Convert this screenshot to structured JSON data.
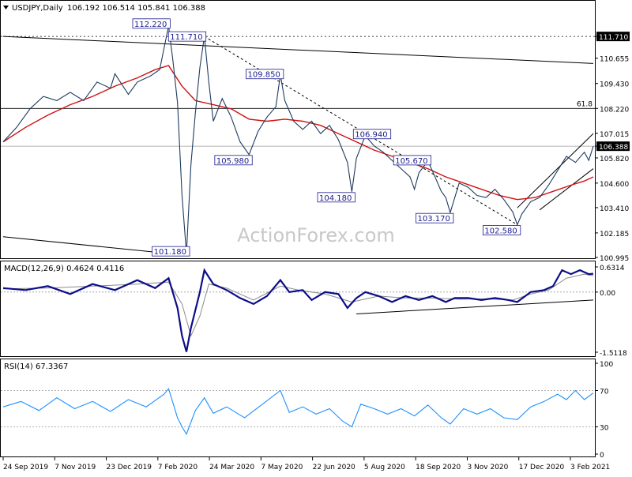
{
  "chart_data": [
    {
      "type": "line",
      "panel": "price",
      "title": "USDJPY,Daily",
      "ohlc_readout": "106.192 106.514 105.841 106.388",
      "watermark": "ActionForex.com",
      "current_price": 106.388,
      "ylim": [
        100.995,
        113.4
      ],
      "y_ticks": [
        {
          "value": 111.71,
          "label": "111.710"
        },
        {
          "value": 110.655,
          "label": "110.655"
        },
        {
          "value": 109.43,
          "label": "109.430"
        },
        {
          "value": 108.22,
          "label": "108.220"
        },
        {
          "value": 107.015,
          "label": "107.015"
        },
        {
          "value": 106.388,
          "label": "106.388"
        },
        {
          "value": 105.82,
          "label": "105.820"
        },
        {
          "value": 104.6,
          "label": "104.600"
        },
        {
          "value": 103.41,
          "label": "103.410"
        },
        {
          "value": 102.185,
          "label": "102.185"
        },
        {
          "value": 100.995,
          "label": "100.995"
        }
      ],
      "x_ticks": [
        "24 Sep 2019",
        "7 Nov 2019",
        "23 Dec 2019",
        "7 Feb 2020",
        "24 Mar 2020",
        "7 May 2020",
        "22 Jun 2020",
        "5 Aug 2020",
        "18 Sep 2020",
        "3 Nov 2020",
        "17 Dec 2020",
        "3 Feb 2021"
      ],
      "price_path": [
        [
          0,
          106.6
        ],
        [
          3,
          107.3
        ],
        [
          6,
          108.2
        ],
        [
          9,
          108.8
        ],
        [
          12,
          108.6
        ],
        [
          15,
          109.0
        ],
        [
          18,
          108.6
        ],
        [
          21,
          109.5
        ],
        [
          24,
          109.2
        ],
        [
          25,
          109.9
        ],
        [
          28,
          108.9
        ],
        [
          30,
          109.5
        ],
        [
          33,
          109.8
        ],
        [
          35,
          110.1
        ],
        [
          37,
          112.22
        ],
        [
          38,
          110.5
        ],
        [
          39,
          108.5
        ],
        [
          40,
          104.0
        ],
        [
          41,
          101.18
        ],
        [
          42,
          105.5
        ],
        [
          43,
          108.0
        ],
        [
          44,
          110.2
        ],
        [
          45,
          111.71
        ],
        [
          46,
          109.5
        ],
        [
          47,
          107.6
        ],
        [
          49,
          108.7
        ],
        [
          51,
          107.8
        ],
        [
          53,
          106.6
        ],
        [
          55,
          105.98
        ],
        [
          57,
          107.1
        ],
        [
          59,
          107.8
        ],
        [
          61,
          108.3
        ],
        [
          62,
          109.85
        ],
        [
          63,
          108.6
        ],
        [
          65,
          107.6
        ],
        [
          67,
          107.2
        ],
        [
          69,
          107.6
        ],
        [
          71,
          107.0
        ],
        [
          73,
          107.4
        ],
        [
          75,
          106.7
        ],
        [
          77,
          105.6
        ],
        [
          78,
          104.18
        ],
        [
          79,
          105.8
        ],
        [
          81,
          106.9
        ],
        [
          83,
          106.4
        ],
        [
          85,
          106.1
        ],
        [
          87,
          105.7
        ],
        [
          89,
          105.3
        ],
        [
          91,
          104.9
        ],
        [
          92,
          104.3
        ],
        [
          93,
          105.1
        ],
        [
          95,
          105.67
        ],
        [
          96,
          105.2
        ],
        [
          97,
          104.7
        ],
        [
          98,
          104.2
        ],
        [
          99,
          103.9
        ],
        [
          100,
          103.17
        ],
        [
          102,
          104.6
        ],
        [
          104,
          104.4
        ],
        [
          106,
          104.0
        ],
        [
          108,
          103.9
        ],
        [
          110,
          104.3
        ],
        [
          112,
          103.8
        ],
        [
          114,
          103.2
        ],
        [
          115,
          102.58
        ],
        [
          116,
          103.1
        ],
        [
          118,
          103.7
        ],
        [
          120,
          103.9
        ],
        [
          122,
          104.5
        ],
        [
          124,
          105.2
        ],
        [
          126,
          105.9
        ],
        [
          128,
          105.6
        ],
        [
          130,
          106.1
        ],
        [
          131,
          105.7
        ],
        [
          132,
          106.388
        ]
      ],
      "sma_path": [
        [
          0,
          106.6
        ],
        [
          5,
          107.3
        ],
        [
          10,
          107.9
        ],
        [
          15,
          108.4
        ],
        [
          20,
          108.8
        ],
        [
          25,
          109.3
        ],
        [
          30,
          109.7
        ],
        [
          34,
          110.1
        ],
        [
          37,
          110.3
        ],
        [
          40,
          109.3
        ],
        [
          43,
          108.6
        ],
        [
          47,
          108.4
        ],
        [
          51,
          108.2
        ],
        [
          55,
          107.7
        ],
        [
          59,
          107.6
        ],
        [
          63,
          107.7
        ],
        [
          67,
          107.6
        ],
        [
          71,
          107.4
        ],
        [
          75,
          107.0
        ],
        [
          79,
          106.6
        ],
        [
          83,
          106.2
        ],
        [
          87,
          105.9
        ],
        [
          91,
          105.6
        ],
        [
          95,
          105.3
        ],
        [
          99,
          104.9
        ],
        [
          103,
          104.6
        ],
        [
          107,
          104.3
        ],
        [
          111,
          104.0
        ],
        [
          115,
          103.8
        ],
        [
          119,
          103.9
        ],
        [
          123,
          104.2
        ],
        [
          127,
          104.5
        ],
        [
          130,
          104.7
        ],
        [
          132,
          104.9
        ]
      ],
      "trendlines": [
        {
          "name": "upper-channel",
          "from": [
            0,
            111.71
          ],
          "to": [
            132,
            110.4
          ]
        },
        {
          "name": "lower-channel",
          "from": [
            0,
            102.0
          ],
          "to": [
            41,
            101.1
          ]
        },
        {
          "name": "dashed-downtrend",
          "from": [
            45,
            111.71
          ],
          "to": [
            115,
            102.58
          ]
        },
        {
          "name": "rising-channel-upper",
          "from": [
            115,
            103.4
          ],
          "to": [
            132,
            107.0
          ]
        },
        {
          "name": "rising-channel-lower",
          "from": [
            120,
            103.3
          ],
          "to": [
            132,
            105.3
          ]
        }
      ],
      "hlines": [
        {
          "value": 111.71,
          "style": "dotted"
        },
        {
          "value": 108.22,
          "label": "61.8"
        },
        {
          "value": 106.388,
          "style": "current"
        }
      ],
      "annotations": [
        {
          "text": "112.220",
          "at": [
            37,
            112.22
          ]
        },
        {
          "text": "111.710",
          "at": [
            45,
            111.71
          ]
        },
        {
          "text": "109.850",
          "at": [
            62,
            109.85
          ]
        },
        {
          "text": "105.980",
          "at": [
            55,
            105.98
          ]
        },
        {
          "text": "104.180",
          "at": [
            78,
            104.18
          ]
        },
        {
          "text": "106.940",
          "at": [
            86,
            106.94
          ]
        },
        {
          "text": "105.670",
          "at": [
            95,
            105.67
          ]
        },
        {
          "text": "103.170",
          "at": [
            100,
            103.17
          ]
        },
        {
          "text": "102.580",
          "at": [
            115,
            102.58
          ]
        },
        {
          "text": "101.180",
          "at": [
            41,
            101.18
          ]
        }
      ]
    },
    {
      "type": "line",
      "panel": "macd",
      "title": "MACD(12,26,9) 0.4624 0.4116",
      "ylim": [
        -1.5118,
        0.6314
      ],
      "y_ticks": [
        {
          "value": 0.6314,
          "label": "0.6314"
        },
        {
          "value": 0.0,
          "label": "0.00"
        },
        {
          "value": -1.5118,
          "label": "-1.5118"
        }
      ],
      "macd_path": [
        [
          0,
          0.1
        ],
        [
          5,
          0.05
        ],
        [
          10,
          0.15
        ],
        [
          15,
          -0.05
        ],
        [
          20,
          0.2
        ],
        [
          25,
          0.05
        ],
        [
          30,
          0.3
        ],
        [
          34,
          0.1
        ],
        [
          37,
          0.35
        ],
        [
          39,
          -0.4
        ],
        [
          40,
          -1.1
        ],
        [
          41,
          -1.5
        ],
        [
          42,
          -0.9
        ],
        [
          44,
          0.0
        ],
        [
          45,
          0.55
        ],
        [
          47,
          0.2
        ],
        [
          50,
          0.05
        ],
        [
          53,
          -0.15
        ],
        [
          56,
          -0.3
        ],
        [
          59,
          -0.1
        ],
        [
          62,
          0.3
        ],
        [
          64,
          0.0
        ],
        [
          67,
          0.05
        ],
        [
          69,
          -0.2
        ],
        [
          72,
          0.0
        ],
        [
          75,
          -0.05
        ],
        [
          77,
          -0.4
        ],
        [
          79,
          -0.15
        ],
        [
          81,
          0.0
        ],
        [
          84,
          -0.1
        ],
        [
          87,
          -0.25
        ],
        [
          90,
          -0.1
        ],
        [
          93,
          -0.2
        ],
        [
          96,
          -0.1
        ],
        [
          99,
          -0.25
        ],
        [
          101,
          -0.15
        ],
        [
          104,
          -0.15
        ],
        [
          107,
          -0.2
        ],
        [
          110,
          -0.15
        ],
        [
          113,
          -0.2
        ],
        [
          115,
          -0.25
        ],
        [
          118,
          0.0
        ],
        [
          121,
          0.05
        ],
        [
          123,
          0.15
        ],
        [
          125,
          0.55
        ],
        [
          127,
          0.45
        ],
        [
          129,
          0.55
        ],
        [
          131,
          0.45
        ],
        [
          132,
          0.46
        ]
      ],
      "signal_path": [
        [
          0,
          0.08
        ],
        [
          10,
          0.1
        ],
        [
          20,
          0.15
        ],
        [
          30,
          0.2
        ],
        [
          37,
          0.25
        ],
        [
          40,
          -0.3
        ],
        [
          42,
          -1.1
        ],
        [
          44,
          -0.6
        ],
        [
          46,
          0.2
        ],
        [
          50,
          0.1
        ],
        [
          56,
          -0.2
        ],
        [
          62,
          0.15
        ],
        [
          66,
          0.05
        ],
        [
          72,
          -0.05
        ],
        [
          78,
          -0.25
        ],
        [
          84,
          -0.1
        ],
        [
          90,
          -0.15
        ],
        [
          96,
          -0.15
        ],
        [
          102,
          -0.18
        ],
        [
          108,
          -0.17
        ],
        [
          114,
          -0.2
        ],
        [
          118,
          -0.05
        ],
        [
          122,
          0.05
        ],
        [
          126,
          0.35
        ],
        [
          130,
          0.45
        ],
        [
          132,
          0.41
        ]
      ],
      "trendline": {
        "from": [
          79,
          -0.55
        ],
        "to": [
          132,
          -0.2
        ]
      }
    },
    {
      "type": "line",
      "panel": "rsi",
      "title": "RSI(14) 67.3367",
      "ylim": [
        0,
        100
      ],
      "y_ticks": [
        {
          "value": 100,
          "label": "100"
        },
        {
          "value": 70,
          "label": "70"
        },
        {
          "value": 30,
          "label": "30"
        },
        {
          "value": 0,
          "label": "0"
        }
      ],
      "levels": [
        70,
        30
      ],
      "rsi_path": [
        [
          0,
          52
        ],
        [
          4,
          58
        ],
        [
          8,
          48
        ],
        [
          12,
          62
        ],
        [
          16,
          50
        ],
        [
          20,
          58
        ],
        [
          24,
          47
        ],
        [
          28,
          60
        ],
        [
          32,
          52
        ],
        [
          36,
          66
        ],
        [
          37,
          72
        ],
        [
          39,
          40
        ],
        [
          40,
          30
        ],
        [
          41,
          22
        ],
        [
          43,
          48
        ],
        [
          45,
          62
        ],
        [
          47,
          45
        ],
        [
          50,
          52
        ],
        [
          54,
          40
        ],
        [
          58,
          55
        ],
        [
          62,
          70
        ],
        [
          64,
          46
        ],
        [
          67,
          52
        ],
        [
          70,
          44
        ],
        [
          73,
          50
        ],
        [
          76,
          36
        ],
        [
          78,
          30
        ],
        [
          80,
          55
        ],
        [
          83,
          50
        ],
        [
          86,
          44
        ],
        [
          89,
          50
        ],
        [
          92,
          42
        ],
        [
          95,
          54
        ],
        [
          98,
          40
        ],
        [
          100,
          33
        ],
        [
          103,
          50
        ],
        [
          106,
          44
        ],
        [
          109,
          50
        ],
        [
          112,
          40
        ],
        [
          115,
          38
        ],
        [
          118,
          52
        ],
        [
          121,
          58
        ],
        [
          124,
          66
        ],
        [
          126,
          60
        ],
        [
          128,
          70
        ],
        [
          130,
          60
        ],
        [
          132,
          67.34
        ]
      ]
    }
  ]
}
